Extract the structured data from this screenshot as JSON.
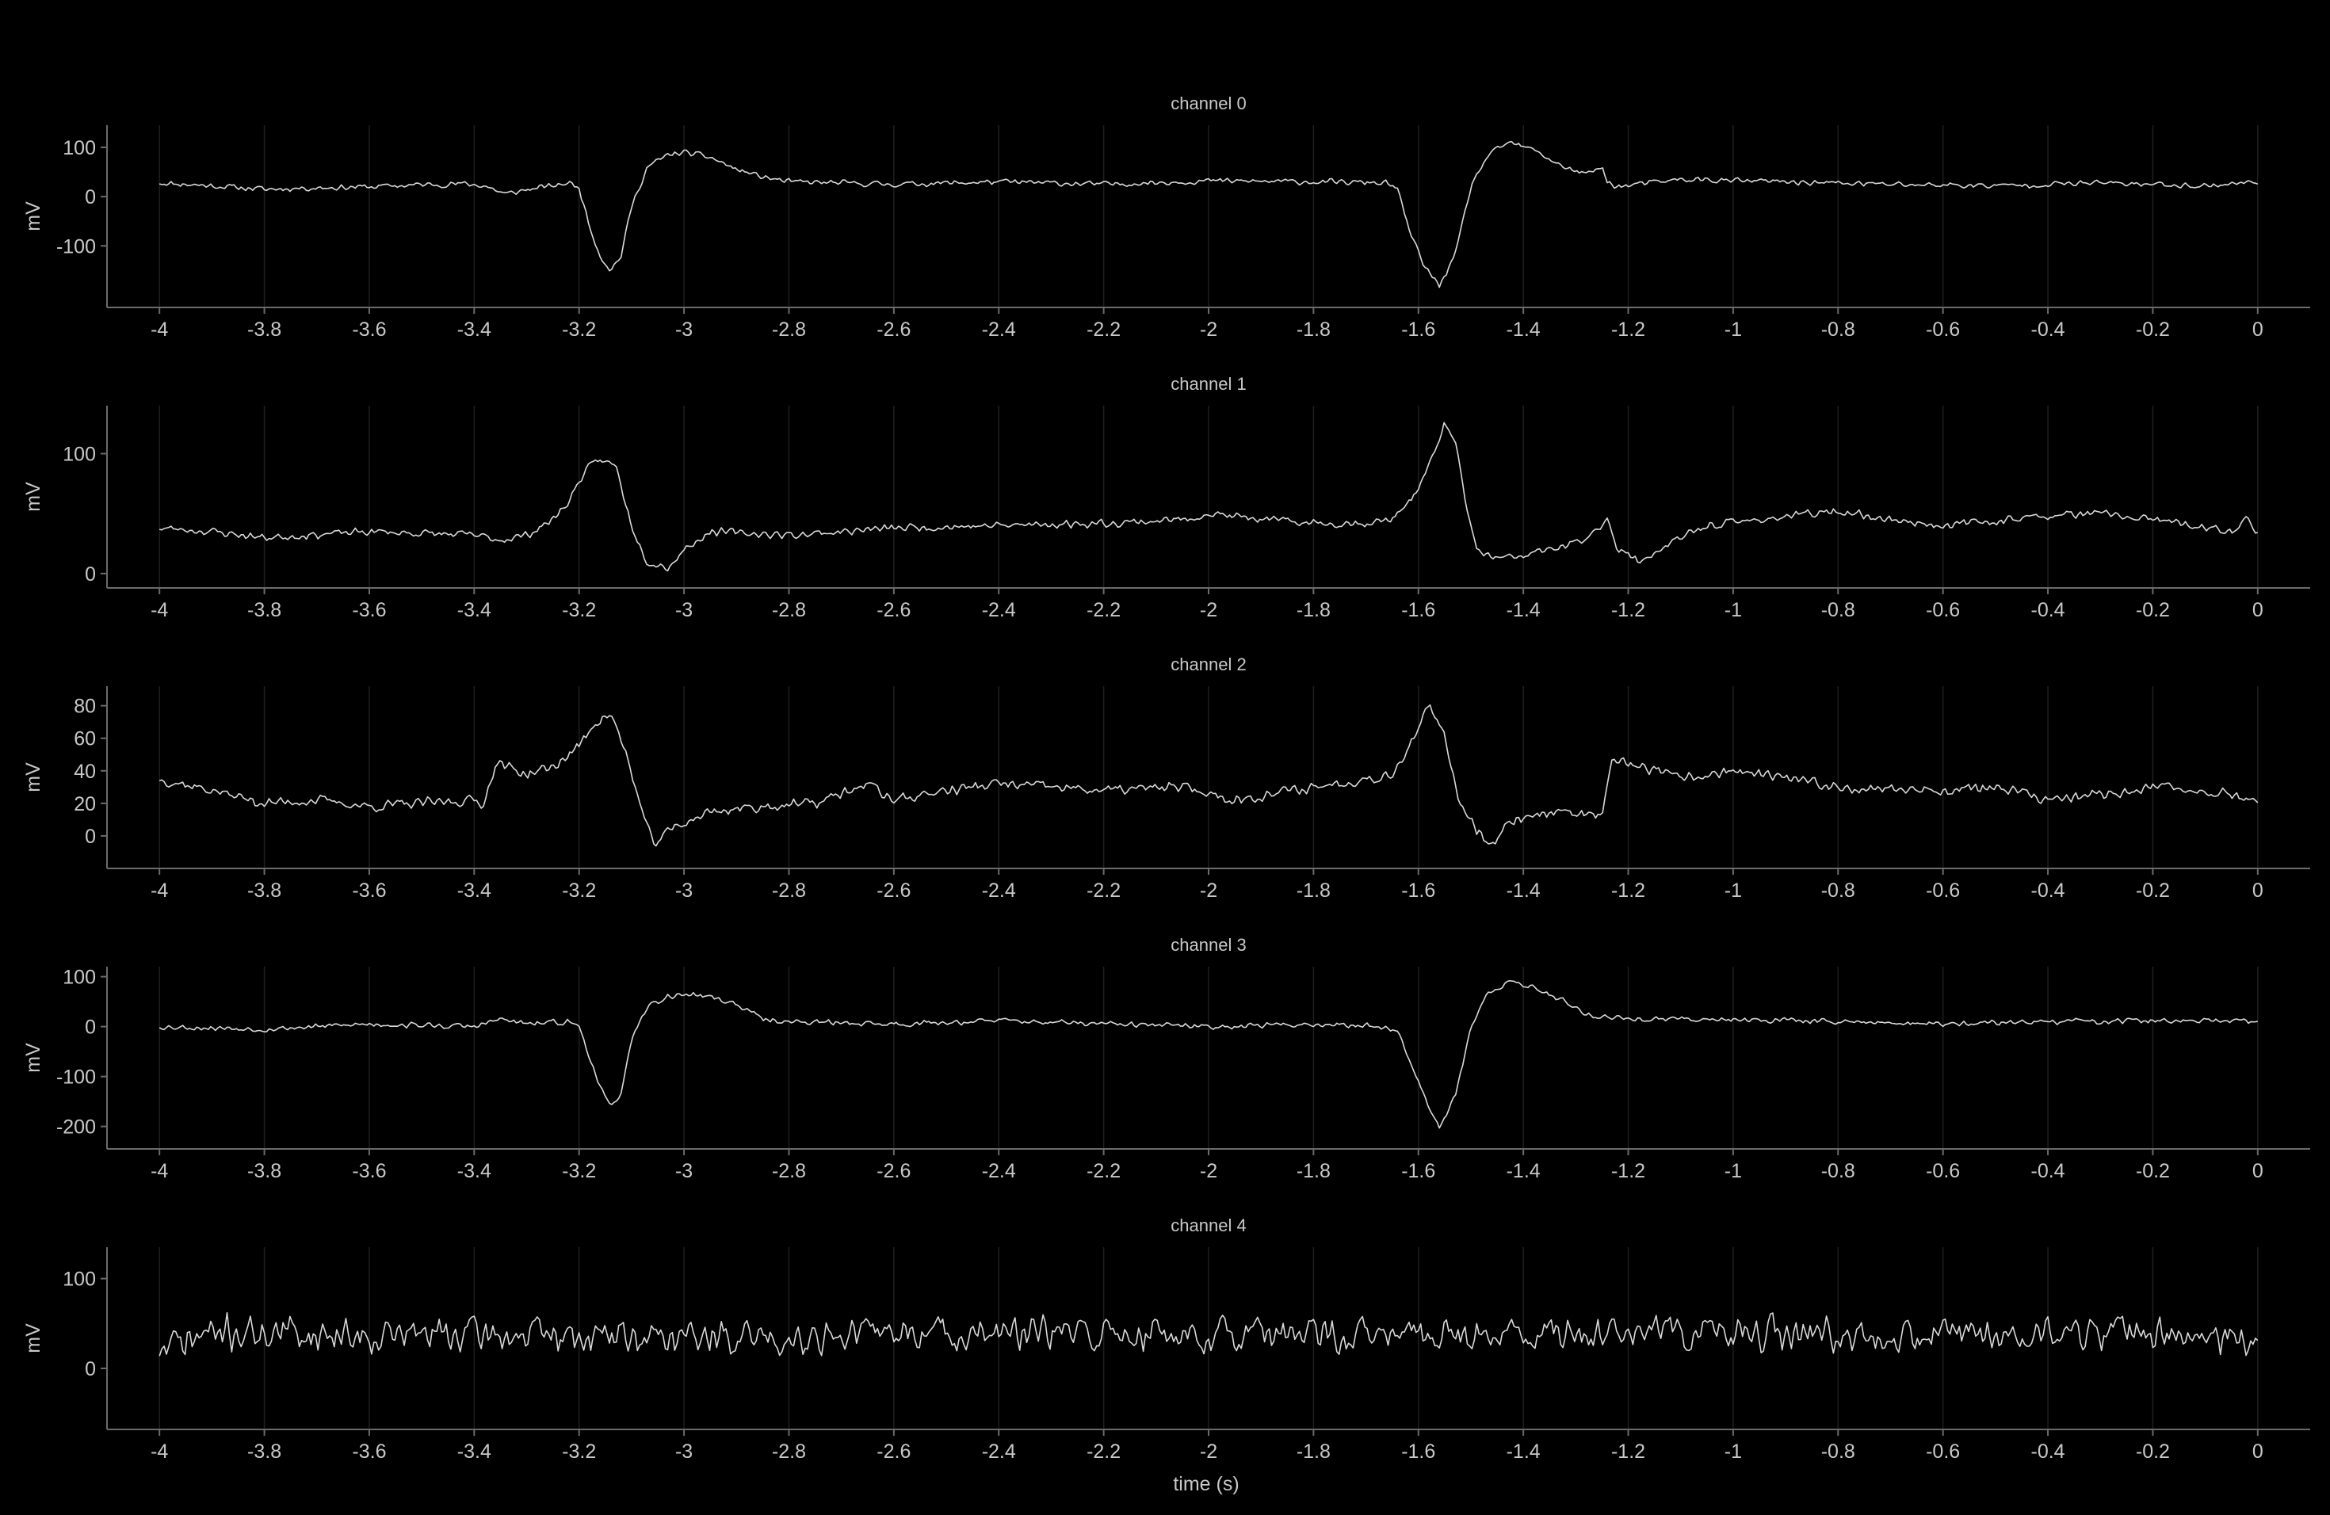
{
  "chart_data": {
    "type": "line",
    "xlabel": "time (s)",
    "xlim": [
      -4.1,
      0.1
    ],
    "xticks": [
      -4,
      -3.8,
      -3.6,
      -3.4,
      -3.2,
      -3,
      -2.8,
      -2.6,
      -2.4,
      -2.2,
      -2,
      -1.8,
      -1.6,
      -1.4,
      -1.2,
      -1,
      -0.8,
      -0.6,
      -0.4,
      -0.2,
      0
    ],
    "xticklabels": [
      "-4",
      "-3.8",
      "-3.6",
      "-3.4",
      "-3.2",
      "-3",
      "-2.8",
      "-2.6",
      "-2.4",
      "-2.2",
      "-2",
      "-1.8",
      "-1.6",
      "-1.4",
      "-1.2",
      "-1",
      "-0.8",
      "-0.6",
      "-0.4",
      "-0.2",
      "0"
    ],
    "grid": "vertical",
    "background": "#000000",
    "line_color": "#d9d9d9",
    "grid_color": "#1f1f1f",
    "axis_color": "#6b6b6b",
    "text_color": "#c8c8c8",
    "panels": [
      {
        "title": "channel 0",
        "ylabel": "mV",
        "ylim": [
          -225,
          145
        ],
        "yticks": [
          100,
          0,
          -100
        ],
        "yticklabels": [
          "100",
          "0",
          "-100"
        ],
        "noise": 7,
        "seed": 11,
        "points": [
          [
            -4,
            28
          ],
          [
            -3.9,
            22
          ],
          [
            -3.8,
            15
          ],
          [
            -3.7,
            18
          ],
          [
            -3.6,
            20
          ],
          [
            -3.5,
            24
          ],
          [
            -3.42,
            26
          ],
          [
            -3.38,
            22
          ],
          [
            -3.34,
            5
          ],
          [
            -3.3,
            14
          ],
          [
            -3.25,
            22
          ],
          [
            -3.22,
            28
          ],
          [
            -3.2,
            18
          ],
          [
            -3.18,
            -60
          ],
          [
            -3.16,
            -120
          ],
          [
            -3.14,
            -150
          ],
          [
            -3.12,
            -120
          ],
          [
            -3.1,
            -20
          ],
          [
            -3.07,
            60
          ],
          [
            -3.03,
            85
          ],
          [
            -3,
            90
          ],
          [
            -2.95,
            80
          ],
          [
            -2.9,
            55
          ],
          [
            -2.85,
            40
          ],
          [
            -2.8,
            30
          ],
          [
            -2.6,
            25
          ],
          [
            -2.4,
            30
          ],
          [
            -2.2,
            25
          ],
          [
            -2,
            32
          ],
          [
            -1.8,
            30
          ],
          [
            -1.66,
            28
          ],
          [
            -1.64,
            15
          ],
          [
            -1.62,
            -60
          ],
          [
            -1.59,
            -140
          ],
          [
            -1.56,
            -180
          ],
          [
            -1.53,
            -120
          ],
          [
            -1.5,
            20
          ],
          [
            -1.47,
            80
          ],
          [
            -1.43,
            110
          ],
          [
            -1.38,
            95
          ],
          [
            -1.34,
            70
          ],
          [
            -1.3,
            50
          ],
          [
            -1.27,
            48
          ],
          [
            -1.25,
            60
          ],
          [
            -1.24,
            30
          ],
          [
            -1.22,
            20
          ],
          [
            -1.1,
            35
          ],
          [
            -0.9,
            30
          ],
          [
            -0.7,
            25
          ],
          [
            -0.5,
            22
          ],
          [
            -0.3,
            28
          ],
          [
            -0.1,
            22
          ],
          [
            0,
            30
          ]
        ]
      },
      {
        "title": "channel 1",
        "ylabel": "mV",
        "ylim": [
          -12,
          140
        ],
        "yticks": [
          100,
          0
        ],
        "yticklabels": [
          "100",
          "0"
        ],
        "noise": 4,
        "seed": 23,
        "points": [
          [
            -4,
            38
          ],
          [
            -3.9,
            35
          ],
          [
            -3.8,
            30
          ],
          [
            -3.6,
            35
          ],
          [
            -3.4,
            32
          ],
          [
            -3.35,
            28
          ],
          [
            -3.3,
            32
          ],
          [
            -3.25,
            45
          ],
          [
            -3.22,
            60
          ],
          [
            -3.19,
            85
          ],
          [
            -3.16,
            95
          ],
          [
            -3.13,
            90
          ],
          [
            -3.1,
            40
          ],
          [
            -3.07,
            10
          ],
          [
            -3.03,
            5
          ],
          [
            -3,
            20
          ],
          [
            -2.95,
            35
          ],
          [
            -2.8,
            32
          ],
          [
            -2.6,
            38
          ],
          [
            -2.4,
            40
          ],
          [
            -2.2,
            42
          ],
          [
            -2.05,
            45
          ],
          [
            -2,
            50
          ],
          [
            -1.9,
            45
          ],
          [
            -1.8,
            42
          ],
          [
            -1.7,
            42
          ],
          [
            -1.65,
            45
          ],
          [
            -1.6,
            70
          ],
          [
            -1.57,
            100
          ],
          [
            -1.55,
            125
          ],
          [
            -1.53,
            110
          ],
          [
            -1.51,
            60
          ],
          [
            -1.49,
            20
          ],
          [
            -1.45,
            12
          ],
          [
            -1.4,
            15
          ],
          [
            -1.3,
            25
          ],
          [
            -1.26,
            35
          ],
          [
            -1.24,
            48
          ],
          [
            -1.22,
            20
          ],
          [
            -1.18,
            10
          ],
          [
            -1.12,
            25
          ],
          [
            -1.05,
            40
          ],
          [
            -0.95,
            45
          ],
          [
            -0.85,
            50
          ],
          [
            -0.8,
            52
          ],
          [
            -0.7,
            45
          ],
          [
            -0.6,
            40
          ],
          [
            -0.4,
            48
          ],
          [
            -0.3,
            50
          ],
          [
            -0.2,
            45
          ],
          [
            -0.1,
            38
          ],
          [
            -0.05,
            35
          ],
          [
            -0.02,
            45
          ],
          [
            0,
            35
          ]
        ]
      },
      {
        "title": "channel 2",
        "ylabel": "mV",
        "ylim": [
          -20,
          92
        ],
        "yticks": [
          80,
          60,
          40,
          20,
          0
        ],
        "yticklabels": [
          "80",
          "60",
          "40",
          "20",
          "0"
        ],
        "noise": 4,
        "seed": 37,
        "points": [
          [
            -4,
            35
          ],
          [
            -3.9,
            28
          ],
          [
            -3.8,
            20
          ],
          [
            -3.7,
            22
          ],
          [
            -3.6,
            18
          ],
          [
            -3.5,
            20
          ],
          [
            -3.4,
            22
          ],
          [
            -3.38,
            20
          ],
          [
            -3.36,
            45
          ],
          [
            -3.3,
            38
          ],
          [
            -3.25,
            42
          ],
          [
            -3.2,
            55
          ],
          [
            -3.17,
            70
          ],
          [
            -3.14,
            75
          ],
          [
            -3.11,
            50
          ],
          [
            -3.08,
            15
          ],
          [
            -3.06,
            -5
          ],
          [
            -3.02,
            5
          ],
          [
            -2.95,
            15
          ],
          [
            -2.85,
            18
          ],
          [
            -2.75,
            20
          ],
          [
            -2.65,
            32
          ],
          [
            -2.6,
            22
          ],
          [
            -2.5,
            28
          ],
          [
            -2.4,
            32
          ],
          [
            -2.2,
            28
          ],
          [
            -2.05,
            30
          ],
          [
            -1.95,
            22
          ],
          [
            -1.8,
            30
          ],
          [
            -1.7,
            35
          ],
          [
            -1.65,
            38
          ],
          [
            -1.6,
            65
          ],
          [
            -1.58,
            80
          ],
          [
            -1.55,
            60
          ],
          [
            -1.52,
            20
          ],
          [
            -1.49,
            5
          ],
          [
            -1.46,
            -5
          ],
          [
            -1.42,
            10
          ],
          [
            -1.35,
            15
          ],
          [
            -1.25,
            12
          ],
          [
            -1.23,
            45
          ],
          [
            -1.2,
            45
          ],
          [
            -1.1,
            35
          ],
          [
            -1.0,
            40
          ],
          [
            -0.9,
            35
          ],
          [
            -0.8,
            30
          ],
          [
            -0.6,
            28
          ],
          [
            -0.5,
            30
          ],
          [
            -0.4,
            22
          ],
          [
            -0.3,
            25
          ],
          [
            -0.2,
            30
          ],
          [
            -0.1,
            28
          ],
          [
            0,
            22
          ]
        ]
      },
      {
        "title": "channel 3",
        "ylabel": "mV",
        "ylim": [
          -245,
          120
        ],
        "yticks": [
          100,
          0,
          -100,
          -200
        ],
        "yticklabels": [
          "100",
          "0",
          "-100",
          "-200"
        ],
        "noise": 7,
        "seed": 53,
        "points": [
          [
            -4,
            0
          ],
          [
            -3.8,
            -5
          ],
          [
            -3.6,
            5
          ],
          [
            -3.4,
            0
          ],
          [
            -3.35,
            15
          ],
          [
            -3.3,
            5
          ],
          [
            -3.22,
            10
          ],
          [
            -3.2,
            0
          ],
          [
            -3.18,
            -60
          ],
          [
            -3.16,
            -120
          ],
          [
            -3.14,
            -165
          ],
          [
            -3.12,
            -130
          ],
          [
            -3.1,
            -30
          ],
          [
            -3.07,
            40
          ],
          [
            -3.03,
            60
          ],
          [
            -3,
            65
          ],
          [
            -2.95,
            60
          ],
          [
            -2.9,
            45
          ],
          [
            -2.85,
            15
          ],
          [
            -2.8,
            10
          ],
          [
            -2.6,
            5
          ],
          [
            -2.4,
            12
          ],
          [
            -2.2,
            5
          ],
          [
            -2,
            0
          ],
          [
            -1.8,
            5
          ],
          [
            -1.66,
            0
          ],
          [
            -1.64,
            -10
          ],
          [
            -1.61,
            -80
          ],
          [
            -1.58,
            -160
          ],
          [
            -1.56,
            -200
          ],
          [
            -1.53,
            -140
          ],
          [
            -1.5,
            0
          ],
          [
            -1.47,
            60
          ],
          [
            -1.43,
            90
          ],
          [
            -1.38,
            80
          ],
          [
            -1.32,
            50
          ],
          [
            -1.28,
            25
          ],
          [
            -1.25,
            20
          ],
          [
            -1.2,
            15
          ],
          [
            -1.0,
            15
          ],
          [
            -0.8,
            10
          ],
          [
            -0.6,
            5
          ],
          [
            -0.4,
            10
          ],
          [
            -0.2,
            12
          ],
          [
            0,
            10
          ]
        ]
      },
      {
        "title": "channel 4",
        "ylabel": "mV",
        "ylim": [
          -68,
          135
        ],
        "yticks": [
          100,
          0
        ],
        "yticklabels": [
          "100",
          "0"
        ],
        "noise": 24,
        "seed": 71,
        "points": [
          [
            -4,
            20
          ],
          [
            -3.9,
            40
          ],
          [
            -3.8,
            40
          ],
          [
            -3.6,
            38
          ],
          [
            -3.4,
            38
          ],
          [
            -3.2,
            35
          ],
          [
            -3.0,
            35
          ],
          [
            -2.8,
            35
          ],
          [
            -2.6,
            40
          ],
          [
            -2.4,
            38
          ],
          [
            -2.2,
            38
          ],
          [
            -2.0,
            38
          ],
          [
            -1.8,
            35
          ],
          [
            -1.6,
            38
          ],
          [
            -1.4,
            38
          ],
          [
            -1.2,
            40
          ],
          [
            -1.0,
            38
          ],
          [
            -0.8,
            38
          ],
          [
            -0.6,
            38
          ],
          [
            -0.4,
            38
          ],
          [
            -0.2,
            40
          ],
          [
            0,
            30
          ]
        ]
      }
    ]
  }
}
